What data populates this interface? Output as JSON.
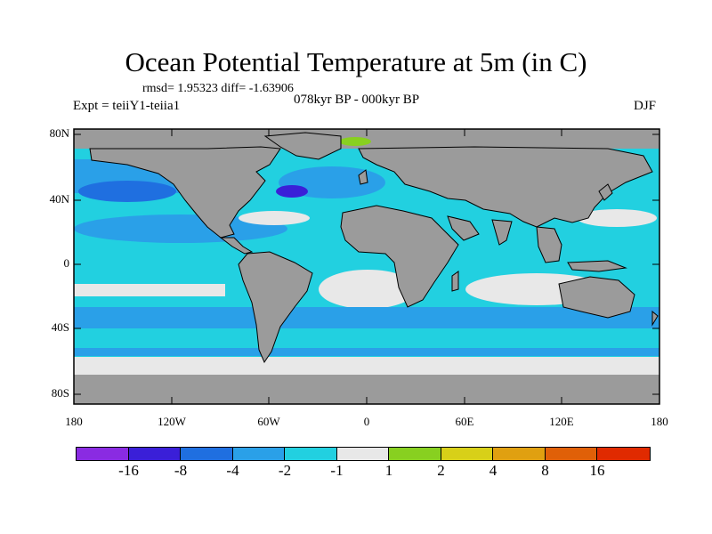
{
  "title": "Ocean Potential Temperature at 5m (in C)",
  "stats_line": "rmsd= 1.95323 diff= -1.63906",
  "expt_line": "Expt = teiiY1-teiia1",
  "period_line": "078kyr BP - 000kyr BP",
  "season": "DJF",
  "lat_labels": [
    "80N",
    "40N",
    "0",
    "40S",
    "80S"
  ],
  "lon_labels": [
    "180",
    "120W",
    "60W",
    "0",
    "60E",
    "120E",
    "180"
  ],
  "colors": {
    "land": "#9b9b9b",
    "ocean_light": "#e8e8e8",
    "coast": "#000000"
  },
  "colorbar": {
    "colors": [
      "#8a2be2",
      "#3a1fd8",
      "#1f6fe0",
      "#2aa0e8",
      "#22d0e0",
      "#e8e8e8",
      "#88d020",
      "#d8d018",
      "#e0a010",
      "#e06008",
      "#e02a00"
    ],
    "labels": [
      "-16",
      "-8",
      "-4",
      "-2",
      "-1",
      "1",
      "2",
      "4",
      "8",
      "16"
    ]
  }
}
